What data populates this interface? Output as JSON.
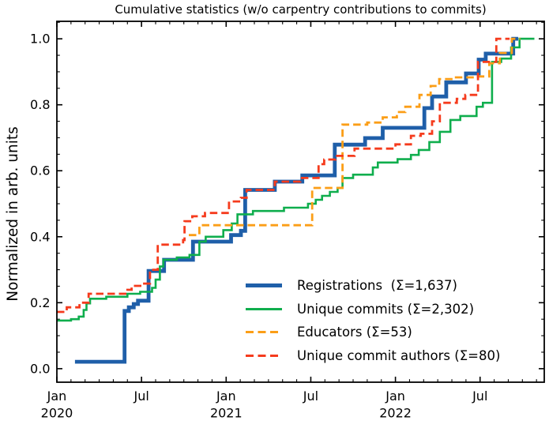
{
  "title": "Cumulative statistics (w/o carpentry contributions to commits)",
  "ylabel": "Normalized in arb. units",
  "chart_data": {
    "type": "line",
    "title": "Cumulative statistics (w/o carpentry contributions to commits)",
    "xlabel": "",
    "ylabel": "Normalized in arb. units",
    "x_unit": "months since Jan 2020",
    "xlim": [
      0,
      34.55
    ],
    "ylim": [
      -0.041,
      1.053
    ],
    "grid": false,
    "tick_style": "inward, all four sides, monthly minor ticks on x, 0.05 minor ticks on y",
    "legend_position": "lower right, no frame",
    "x_major_ticks": [
      {
        "m": 0,
        "month": "Jan",
        "year": "2020"
      },
      {
        "m": 6,
        "month": "Jul",
        "year": ""
      },
      {
        "m": 12,
        "month": "Jan",
        "year": "2021"
      },
      {
        "m": 18,
        "month": "Jul",
        "year": ""
      },
      {
        "m": 24,
        "month": "Jan",
        "year": "2022"
      },
      {
        "m": 30,
        "month": "Jul",
        "year": ""
      }
    ],
    "y_major_ticks": [
      {
        "v": 0.0,
        "label": "0.0"
      },
      {
        "v": 0.2,
        "label": "0.2"
      },
      {
        "v": 0.4,
        "label": "0.4"
      },
      {
        "v": 0.6,
        "label": "0.6"
      },
      {
        "v": 0.8,
        "label": "0.8"
      },
      {
        "v": 1.0,
        "label": "1.0"
      }
    ],
    "series": [
      {
        "id": "registrations",
        "name": "Registrations",
        "legend_label": "Registrations  (Σ=1,637)",
        "total": "1,637",
        "color": "#1f5fa9",
        "width": 4.8,
        "dash": null,
        "step": true,
        "points": [
          [
            1.28,
            0.021
          ],
          [
            4.8,
            0.175
          ],
          [
            5.1,
            0.186
          ],
          [
            5.45,
            0.196
          ],
          [
            5.75,
            0.206
          ],
          [
            6.5,
            0.296
          ],
          [
            7.6,
            0.33
          ],
          [
            9.65,
            0.385
          ],
          [
            12.35,
            0.405
          ],
          [
            13.05,
            0.418
          ],
          [
            13.35,
            0.542
          ],
          [
            15.45,
            0.567
          ],
          [
            17.4,
            0.586
          ],
          [
            19.7,
            0.679
          ],
          [
            21.85,
            0.699
          ],
          [
            23.1,
            0.73
          ],
          [
            26.05,
            0.79
          ],
          [
            26.6,
            0.825
          ],
          [
            27.6,
            0.868
          ],
          [
            29.0,
            0.895
          ],
          [
            29.9,
            0.937
          ],
          [
            30.4,
            0.955
          ],
          [
            32.35,
            1.0
          ],
          [
            32.7,
            1.0
          ]
        ]
      },
      {
        "id": "unique-commits",
        "name": "Unique commits",
        "legend_label": "Unique commits (Σ=2,302)",
        "total": "2,302",
        "color": "#0fae4d",
        "width": 2.6,
        "dash": null,
        "step": true,
        "points": [
          [
            0,
            0.146
          ],
          [
            1.0,
            0.15
          ],
          [
            1.55,
            0.158
          ],
          [
            1.9,
            0.178
          ],
          [
            2.1,
            0.198
          ],
          [
            2.35,
            0.212
          ],
          [
            3.5,
            0.218
          ],
          [
            5.0,
            0.227
          ],
          [
            5.9,
            0.233
          ],
          [
            6.75,
            0.245
          ],
          [
            7.0,
            0.27
          ],
          [
            7.3,
            0.31
          ],
          [
            7.55,
            0.33
          ],
          [
            8.5,
            0.337
          ],
          [
            9.4,
            0.345
          ],
          [
            10.1,
            0.385
          ],
          [
            10.55,
            0.4
          ],
          [
            11.8,
            0.42
          ],
          [
            12.4,
            0.44
          ],
          [
            12.8,
            0.468
          ],
          [
            13.9,
            0.478
          ],
          [
            16.1,
            0.488
          ],
          [
            17.8,
            0.5
          ],
          [
            18.35,
            0.512
          ],
          [
            18.8,
            0.524
          ],
          [
            19.35,
            0.536
          ],
          [
            19.9,
            0.548
          ],
          [
            20.25,
            0.578
          ],
          [
            21.0,
            0.588
          ],
          [
            22.4,
            0.61
          ],
          [
            22.75,
            0.625
          ],
          [
            24.15,
            0.635
          ],
          [
            25.1,
            0.648
          ],
          [
            25.65,
            0.663
          ],
          [
            26.4,
            0.687
          ],
          [
            27.15,
            0.718
          ],
          [
            27.9,
            0.754
          ],
          [
            28.6,
            0.766
          ],
          [
            29.75,
            0.794
          ],
          [
            30.2,
            0.806
          ],
          [
            30.85,
            0.93
          ],
          [
            31.5,
            0.94
          ],
          [
            32.2,
            0.974
          ],
          [
            32.8,
            1.0
          ],
          [
            33.85,
            1.0
          ]
        ]
      },
      {
        "id": "educators",
        "name": "Educators",
        "legend_label": "Educators (Σ=53)",
        "total": "53",
        "color": "#fb9e17",
        "width": 2.8,
        "dash": "9.5 5",
        "step": true,
        "points": [
          [
            9.35,
            0.405
          ],
          [
            10.1,
            0.435
          ],
          [
            17.95,
            0.435
          ],
          [
            18.1,
            0.548
          ],
          [
            20.1,
            0.548
          ],
          [
            20.25,
            0.74
          ],
          [
            22.0,
            0.746
          ],
          [
            23.1,
            0.762
          ],
          [
            24.1,
            0.778
          ],
          [
            24.7,
            0.794
          ],
          [
            25.7,
            0.83
          ],
          [
            26.5,
            0.857
          ],
          [
            27.1,
            0.878
          ],
          [
            28.1,
            0.883
          ],
          [
            29.75,
            0.886
          ],
          [
            30.65,
            0.926
          ],
          [
            31.4,
            0.957
          ],
          [
            32.25,
            1.0
          ],
          [
            32.85,
            1.0
          ]
        ]
      },
      {
        "id": "unique-commit-authors",
        "name": "Unique commit authors",
        "legend_label": "Unique commit authors (Σ=80)",
        "total": "80",
        "color": "#f53b1d",
        "width": 2.8,
        "dash": "9.5 5",
        "step": true,
        "points": [
          [
            0,
            0.172
          ],
          [
            0.7,
            0.186
          ],
          [
            1.6,
            0.2
          ],
          [
            2.25,
            0.227
          ],
          [
            5.0,
            0.239
          ],
          [
            5.3,
            0.251
          ],
          [
            6.05,
            0.258
          ],
          [
            6.6,
            0.3
          ],
          [
            7.15,
            0.376
          ],
          [
            8.95,
            0.39
          ],
          [
            9.05,
            0.447
          ],
          [
            9.6,
            0.462
          ],
          [
            10.5,
            0.472
          ],
          [
            12.2,
            0.507
          ],
          [
            13.05,
            0.518
          ],
          [
            13.45,
            0.542
          ],
          [
            15.45,
            0.567
          ],
          [
            17.25,
            0.578
          ],
          [
            18.55,
            0.62
          ],
          [
            18.95,
            0.634
          ],
          [
            19.75,
            0.645
          ],
          [
            21.1,
            0.667
          ],
          [
            24.0,
            0.68
          ],
          [
            25.1,
            0.706
          ],
          [
            25.8,
            0.712
          ],
          [
            26.6,
            0.75
          ],
          [
            27.15,
            0.806
          ],
          [
            28.35,
            0.818
          ],
          [
            28.95,
            0.83
          ],
          [
            29.85,
            0.93
          ],
          [
            31.15,
            1.0
          ],
          [
            32.1,
            1.0
          ]
        ]
      }
    ]
  }
}
